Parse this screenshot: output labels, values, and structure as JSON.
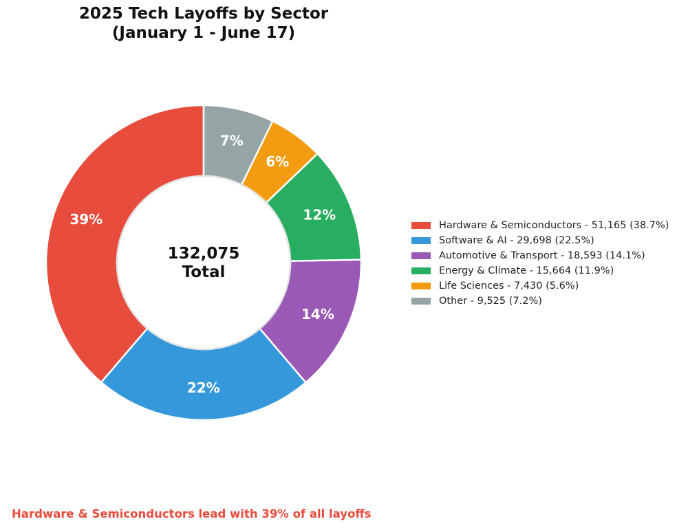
{
  "chart_data": {
    "type": "pie",
    "variant": "donut",
    "title_line1": "2025 Tech Layoffs by Sector",
    "title_line2": "(January 1 - June 17)",
    "center_value": "132,075",
    "center_label": "Total",
    "slices": [
      {
        "label": "Hardware & Semiconductors",
        "value": 51165,
        "percent_label": "39%",
        "legend": "Hardware & Semiconductors - 51,165 (38.7%)",
        "color": "#e74c3c"
      },
      {
        "label": "Software & AI",
        "value": 29698,
        "percent_label": "22%",
        "legend": "Software & AI - 29,698 (22.5%)",
        "color": "#3498db"
      },
      {
        "label": "Automotive & Transport",
        "value": 18593,
        "percent_label": "14%",
        "legend": "Automotive & Transport - 18,593 (14.1%)",
        "color": "#9b59b6"
      },
      {
        "label": "Energy & Climate",
        "value": 15664,
        "percent_label": "12%",
        "legend": "Energy & Climate - 15,664 (11.9%)",
        "color": "#27ae60"
      },
      {
        "label": "Life Sciences",
        "value": 7430,
        "percent_label": "6%",
        "legend": "Life Sciences - 7,430 (5.6%)",
        "color": "#f39c12"
      },
      {
        "label": "Other",
        "value": 9525,
        "percent_label": "7%",
        "legend": "Other - 9,525 (7.2%)",
        "color": "#95a5a6"
      }
    ],
    "start_angle_deg": 90,
    "direction": "counterclockwise",
    "legend_position": "right"
  },
  "footnote": "Hardware & Semiconductors lead with 39% of all layoffs",
  "footnote_color": "#e74c3c"
}
